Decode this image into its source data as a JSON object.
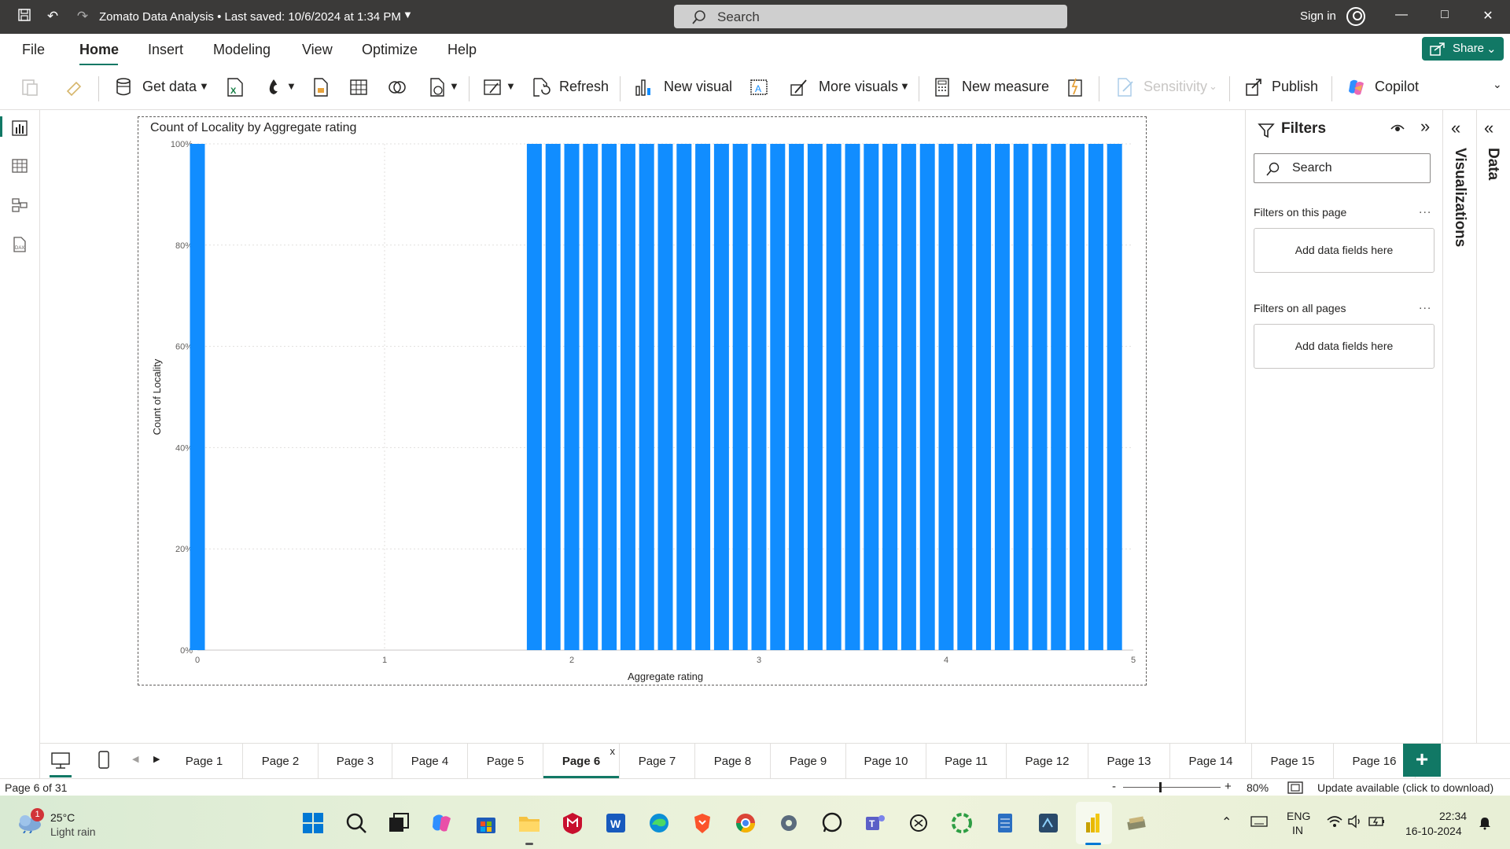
{
  "window": {
    "title": "Zomato Data Analysis",
    "saved": "• Last saved: 10/6/2024 at 1:34 PM",
    "search_placeholder": "Search",
    "signin": "Sign in"
  },
  "ribbon": {
    "tabs": [
      "File",
      "Home",
      "Insert",
      "Modeling",
      "View",
      "Optimize",
      "Help"
    ],
    "active_tab": "Home",
    "share": "Share",
    "buttons": {
      "get_data": "Get data",
      "refresh": "Refresh",
      "new_visual": "New visual",
      "more_visuals": "More visuals",
      "new_measure": "New measure",
      "sensitivity": "Sensitivity",
      "publish": "Publish",
      "copilot": "Copilot"
    }
  },
  "filters": {
    "title": "Filters",
    "search_placeholder": "Search",
    "on_this_page": "Filters on this page",
    "on_all_pages": "Filters on all pages",
    "add_fields": "Add data fields here",
    "more": "..."
  },
  "side_panes": {
    "visualizations": "Visualizations",
    "data": "Data"
  },
  "chart_data": {
    "type": "bar",
    "title": "Count of Locality by Aggregate rating",
    "xlabel": "Aggregate rating",
    "ylabel": "Count of Locality",
    "xlim": [
      0,
      5
    ],
    "ylim": [
      0,
      1
    ],
    "x_ticks": [
      "0",
      "1",
      "2",
      "3",
      "4",
      "5"
    ],
    "y_ticks": [
      "0%",
      "20%",
      "40%",
      "60%",
      "80%",
      "100%"
    ],
    "color": "#118DFF",
    "grid": true,
    "x": [
      0,
      1.8,
      1.9,
      2.0,
      2.1,
      2.2,
      2.3,
      2.4,
      2.5,
      2.6,
      2.7,
      2.8,
      2.9,
      3.0,
      3.1,
      3.2,
      3.3,
      3.4,
      3.5,
      3.6,
      3.7,
      3.8,
      3.9,
      4.0,
      4.1,
      4.2,
      4.3,
      4.4,
      4.5,
      4.6,
      4.7,
      4.8,
      4.9
    ],
    "values": [
      1,
      1,
      1,
      1,
      1,
      1,
      1,
      1,
      1,
      1,
      1,
      1,
      1,
      1,
      1,
      1,
      1,
      1,
      1,
      1,
      1,
      1,
      1,
      1,
      1,
      1,
      1,
      1,
      1,
      1,
      1,
      1,
      1
    ]
  },
  "pages": {
    "tabs": [
      "Page 1",
      "Page 2",
      "Page 3",
      "Page 4",
      "Page 5",
      "Page 6",
      "Page 7",
      "Page 8",
      "Page 9",
      "Page 10",
      "Page 11",
      "Page 12",
      "Page 13",
      "Page 14",
      "Page 15",
      "Page 16"
    ],
    "active": "Page 6",
    "close": "x",
    "add": "+"
  },
  "status": {
    "page_info": "Page 6 of 31",
    "zoom_minus": "-",
    "zoom_plus": "+",
    "zoom": "80%",
    "update": "Update available (click to download)"
  },
  "taskbar": {
    "temp": "25°C",
    "weather": "Light rain",
    "badge": "1",
    "lang1": "ENG",
    "lang2": "IN",
    "time": "22:34",
    "date": "16-10-2024"
  }
}
